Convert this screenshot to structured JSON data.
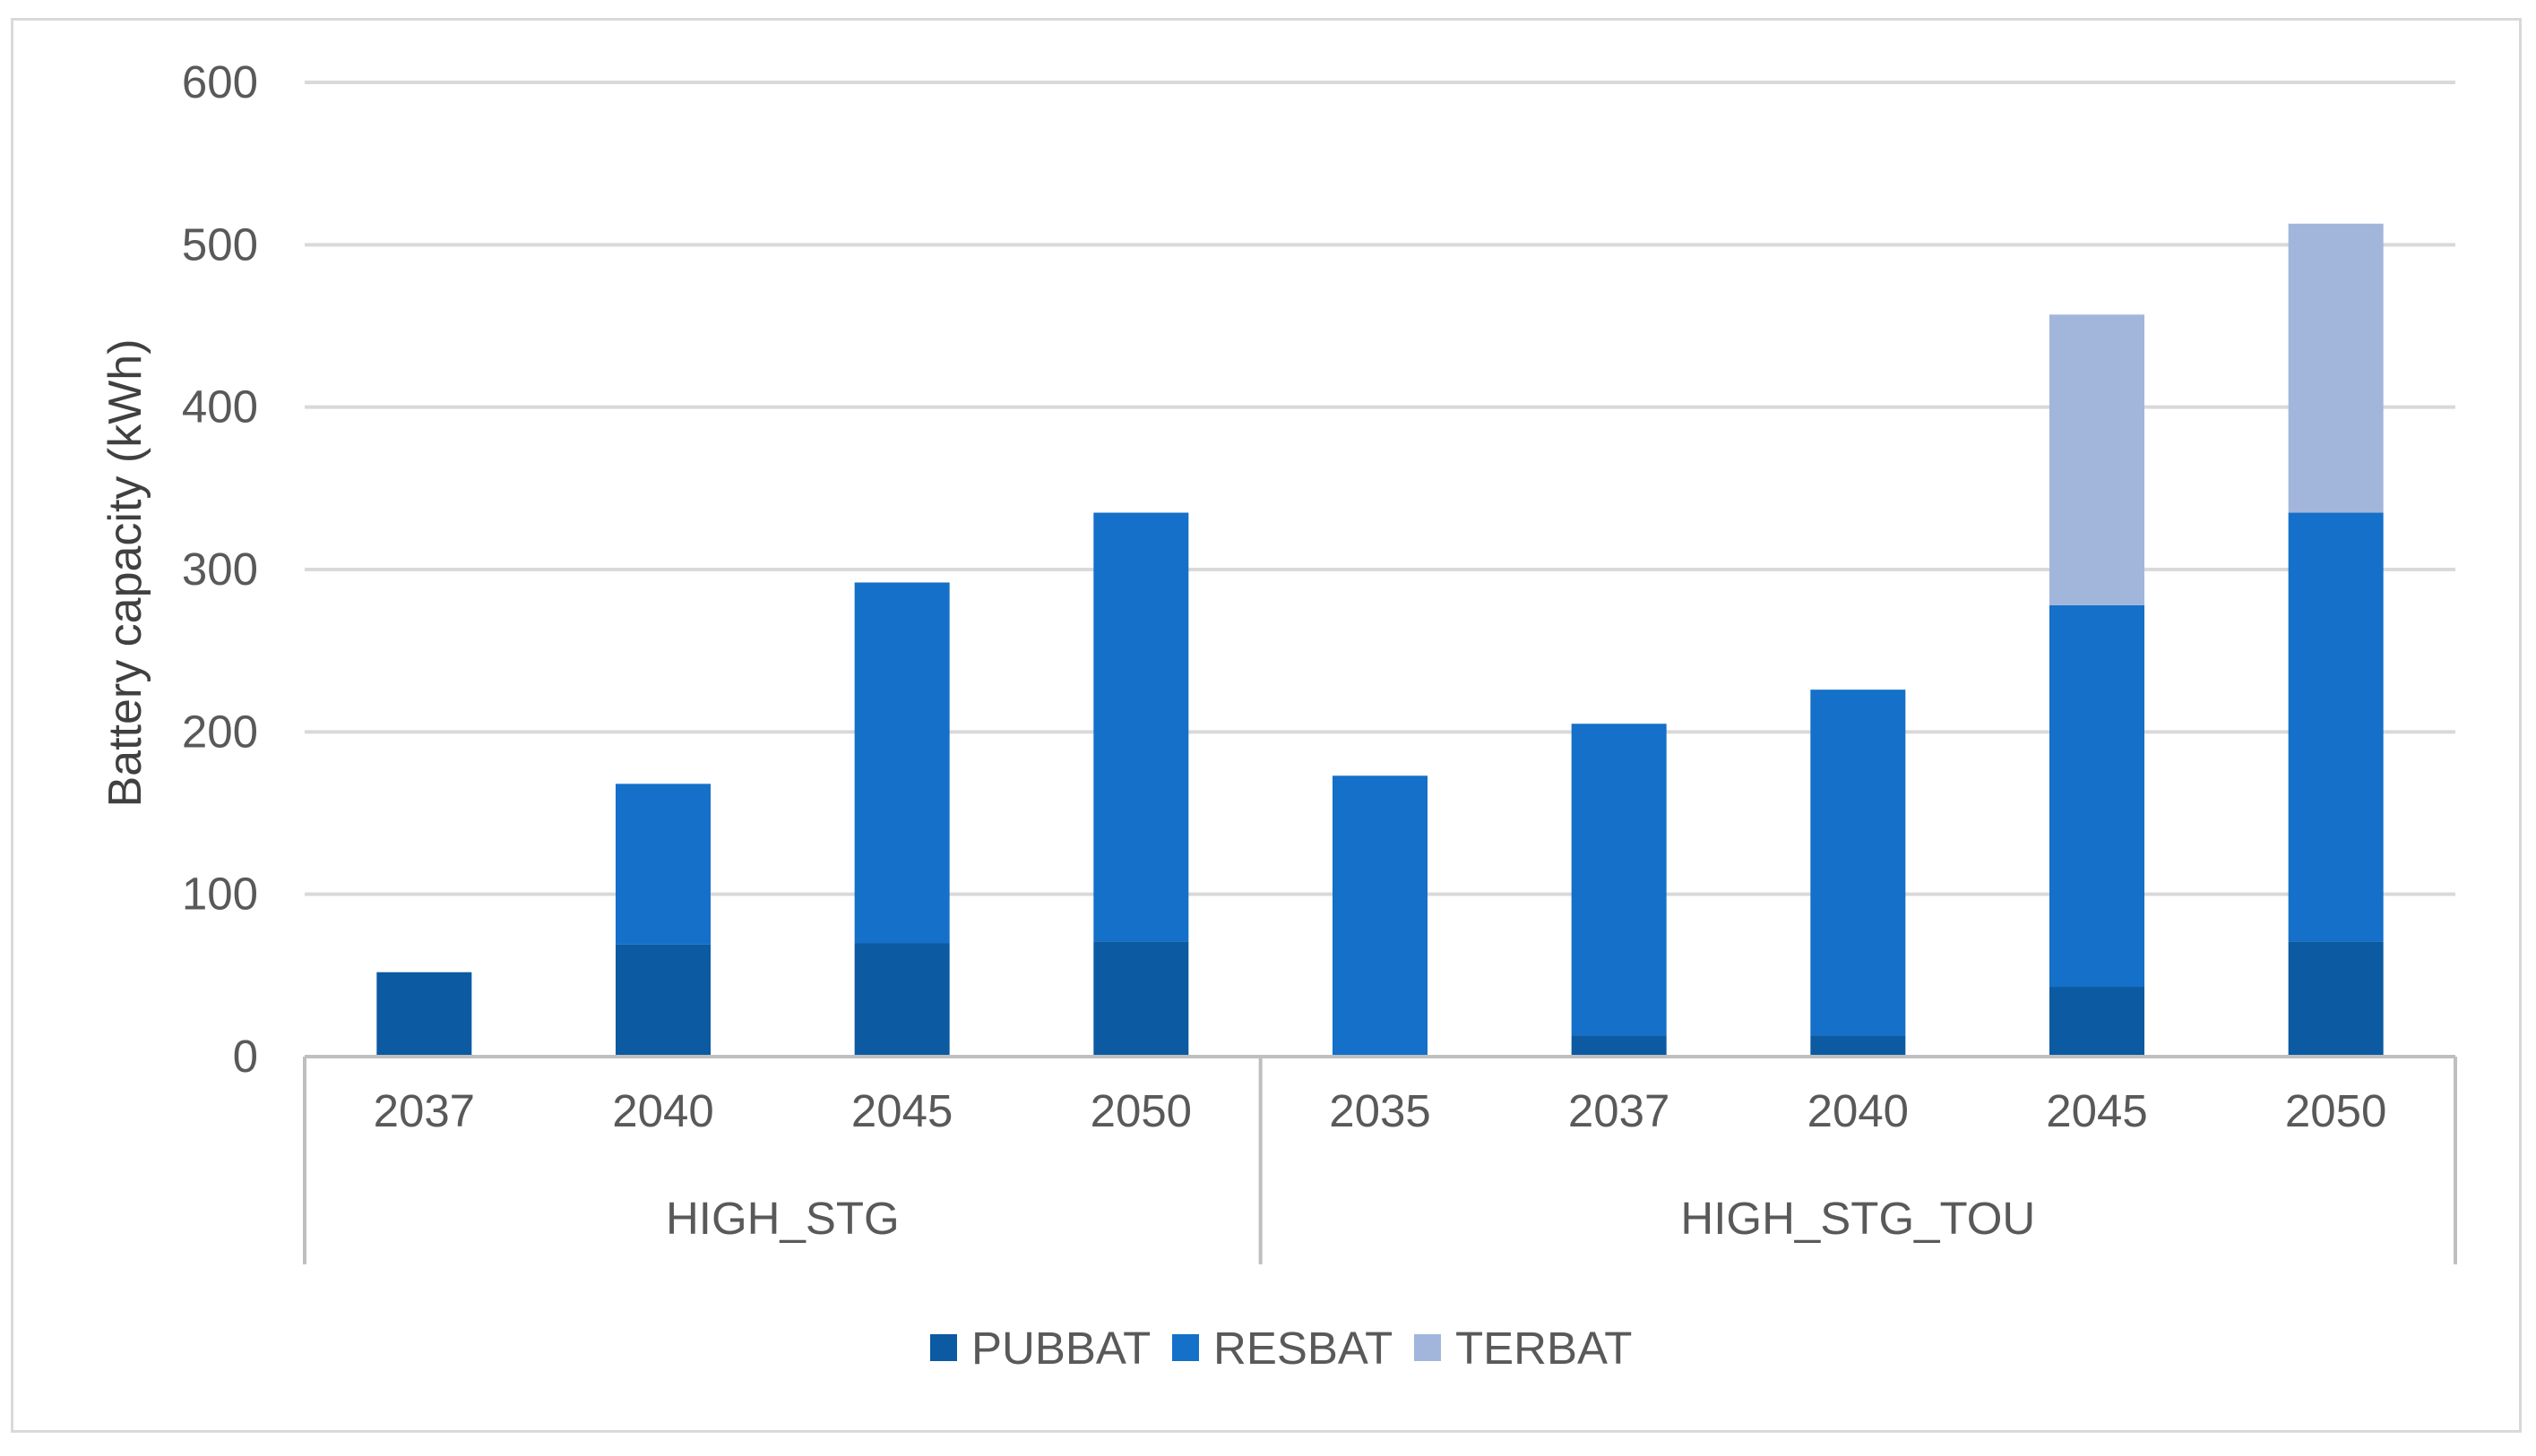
{
  "chart_data": {
    "type": "bar",
    "stacked": true,
    "groups": [
      {
        "label": "HIGH_STG",
        "categories": [
          "2037",
          "2040",
          "2045",
          "2050"
        ]
      },
      {
        "label": "HIGH_STG_TOU",
        "categories": [
          "2035",
          "2037",
          "2040",
          "2045",
          "2050"
        ]
      }
    ],
    "categories": [
      "2037",
      "2040",
      "2045",
      "2050",
      "2035",
      "2037",
      "2040",
      "2045",
      "2050"
    ],
    "series": [
      {
        "name": "PUBBAT",
        "color": "#0b5aa2",
        "values": [
          52,
          69,
          70,
          71,
          0,
          13,
          13,
          43,
          71
        ]
      },
      {
        "name": "RESBAT",
        "color": "#1470c8",
        "values": [
          0,
          99,
          222,
          264,
          173,
          192,
          213,
          235,
          264
        ]
      },
      {
        "name": "TERBAT",
        "color": "#a2b6dc",
        "values": [
          0,
          0,
          0,
          0,
          0,
          0,
          0,
          179,
          178
        ]
      }
    ],
    "ylabel": "Battery capacity (kWh)",
    "xlabel": "",
    "title": "",
    "ylim": [
      0,
      600
    ],
    "yticks": [
      0,
      100,
      200,
      300,
      400,
      500,
      600
    ],
    "grid": true,
    "legend_position": "bottom"
  },
  "colors": {
    "gridline": "#d9d9d9",
    "axis": "#bfbfbf",
    "frame": "#d9d9d9"
  }
}
